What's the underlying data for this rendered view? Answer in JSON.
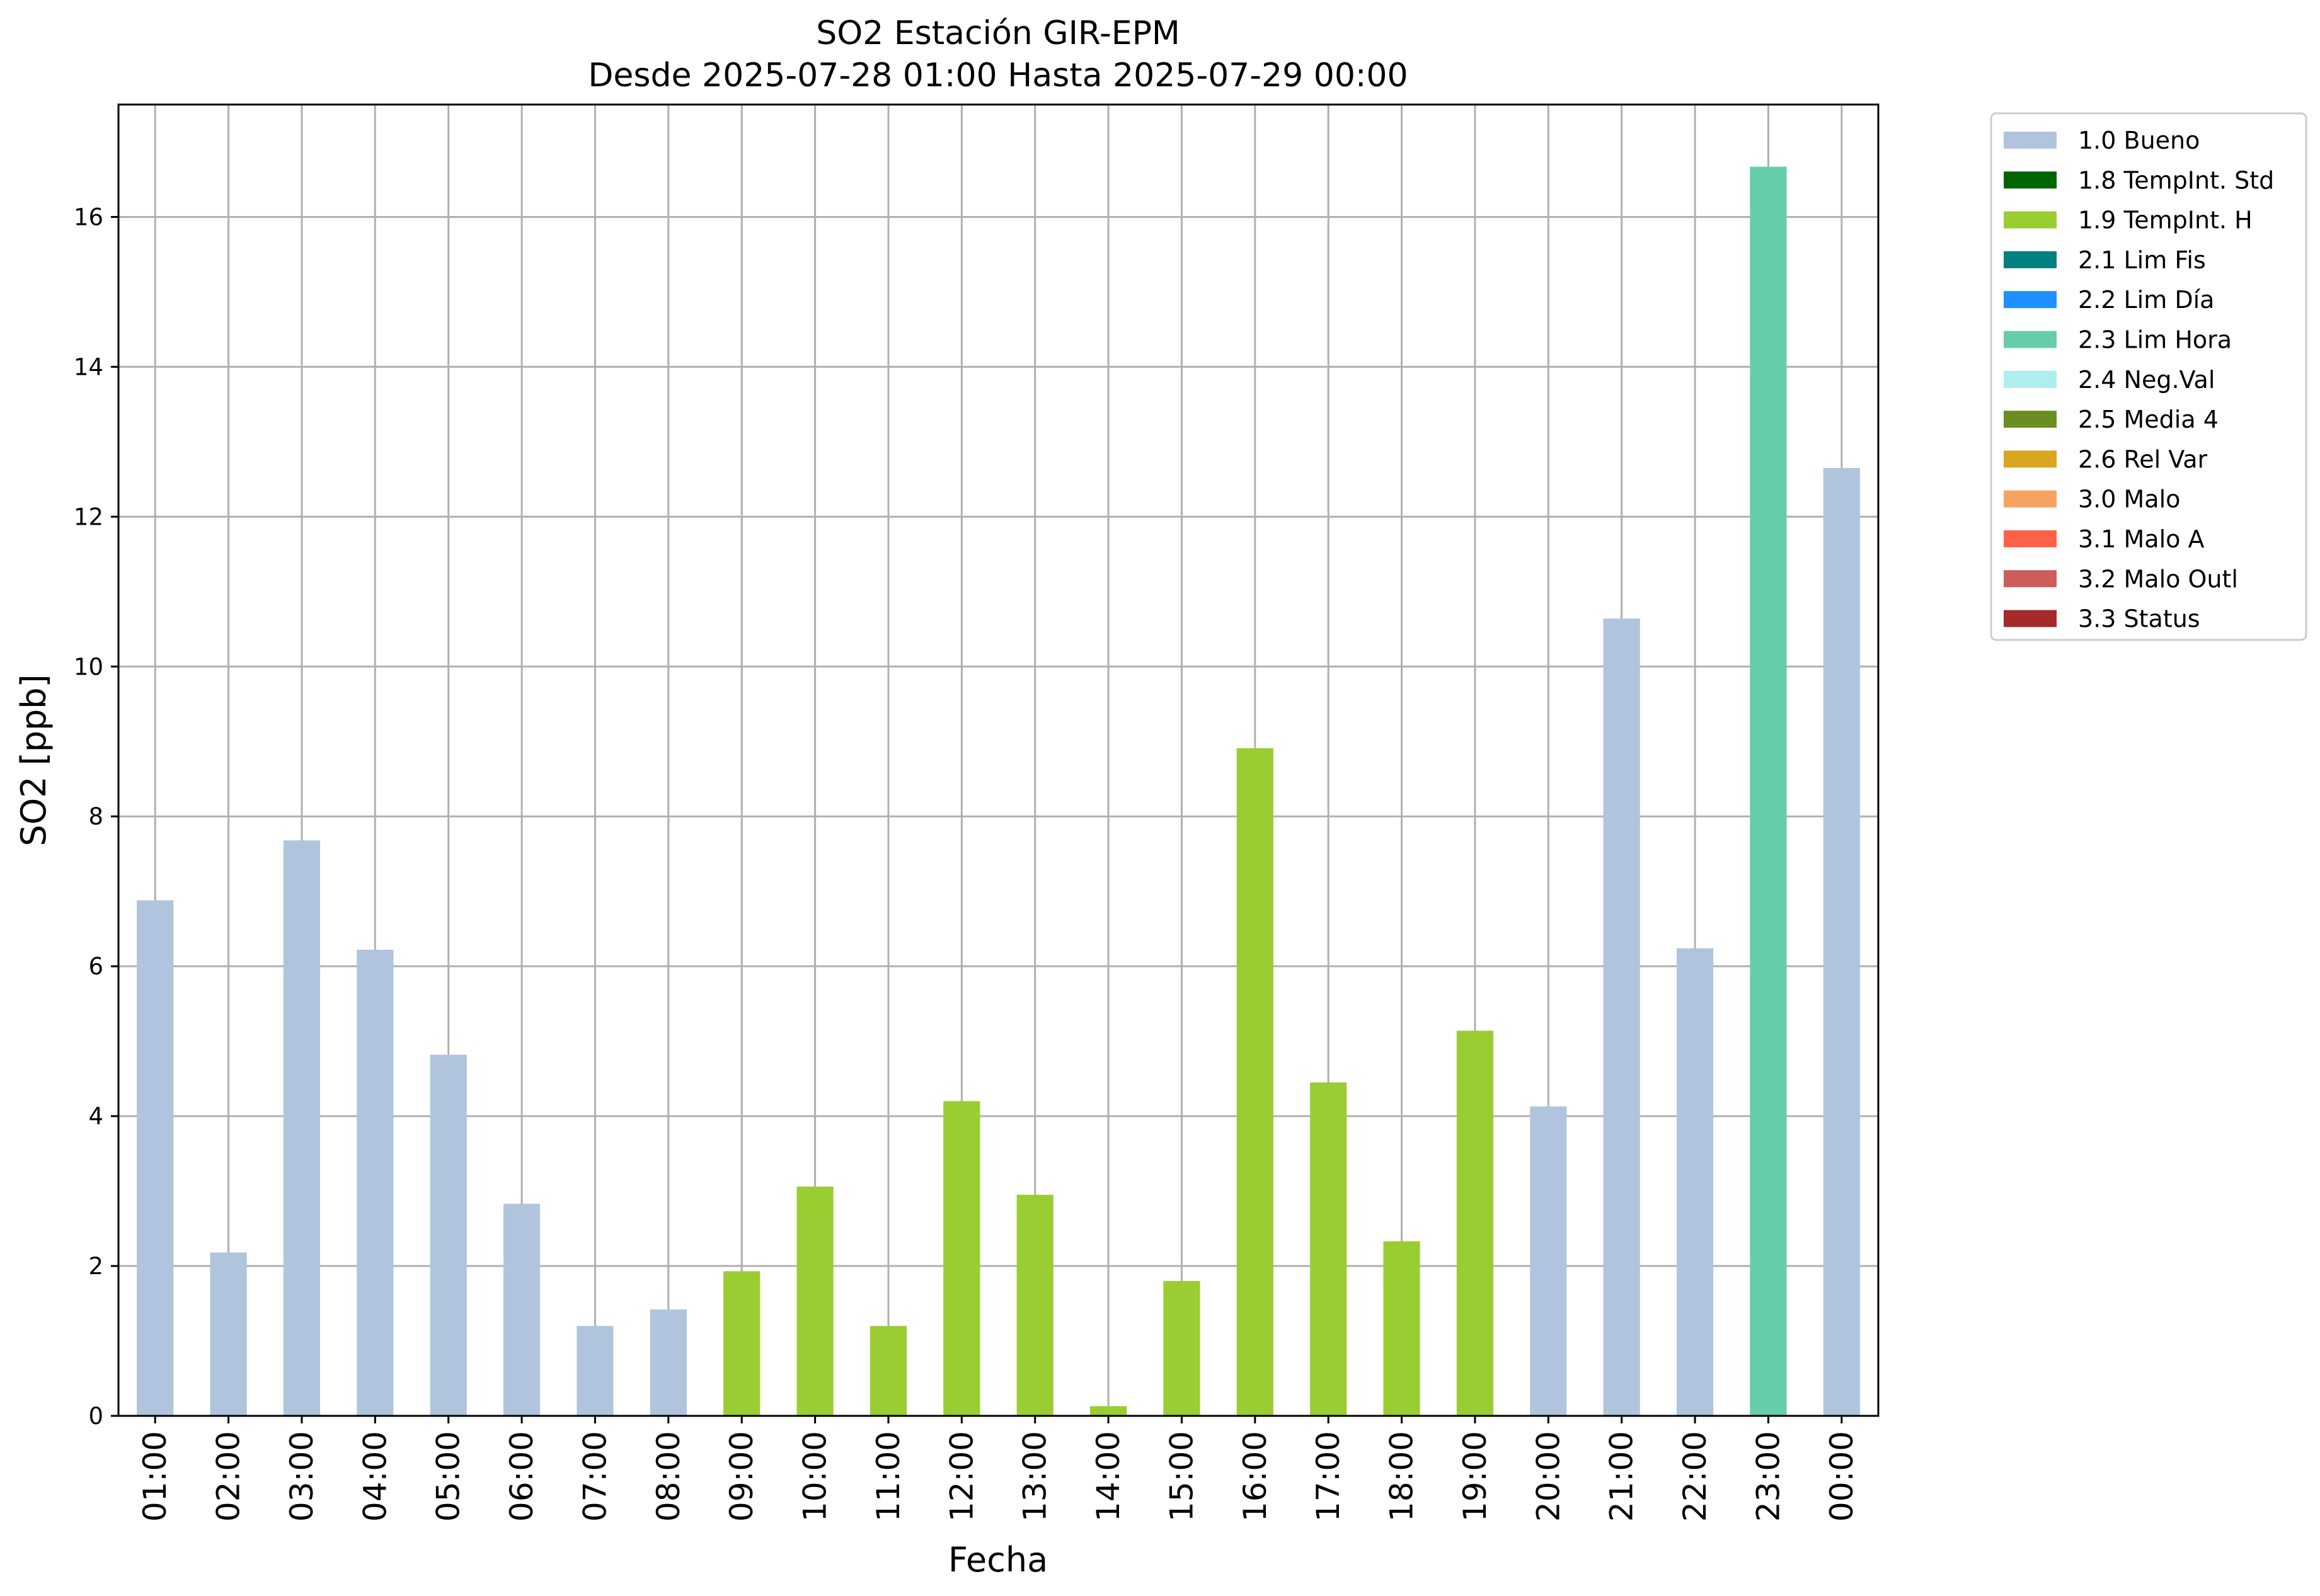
{
  "chart_data": {
    "type": "bar",
    "title": "SO2 Estación GIR-EPM",
    "subtitle": "Desde 2025-07-28 01:00 Hasta 2025-07-29 00:00",
    "xlabel": "Fecha",
    "ylabel": "SO2 [ppb]",
    "ylim": [
      0,
      17.5
    ],
    "yticks": [
      "0",
      "2",
      "4",
      "6",
      "8",
      "10",
      "12",
      "14",
      "16"
    ],
    "grid": true,
    "legend_position": "outside-top-right",
    "categories": [
      "01:00",
      "02:00",
      "03:00",
      "04:00",
      "05:00",
      "06:00",
      "07:00",
      "08:00",
      "09:00",
      "10:00",
      "11:00",
      "12:00",
      "13:00",
      "14:00",
      "15:00",
      "16:00",
      "17:00",
      "18:00",
      "19:00",
      "20:00",
      "21:00",
      "22:00",
      "23:00",
      "00:00"
    ],
    "values": [
      6.88,
      2.18,
      7.68,
      6.22,
      4.82,
      2.83,
      1.2,
      1.42,
      1.93,
      3.06,
      1.2,
      4.2,
      2.95,
      0.13,
      1.8,
      8.91,
      4.45,
      2.33,
      5.14,
      4.13,
      10.64,
      6.24,
      16.67,
      12.65
    ],
    "flags": [
      "1.0 Bueno",
      "1.0 Bueno",
      "1.0 Bueno",
      "1.0 Bueno",
      "1.0 Bueno",
      "1.0 Bueno",
      "1.0 Bueno",
      "1.0 Bueno",
      "1.9 TempInt. H",
      "1.9 TempInt. H",
      "1.9 TempInt. H",
      "1.9 TempInt. H",
      "1.9 TempInt. H",
      "1.9 TempInt. H",
      "1.9 TempInt. H",
      "1.9 TempInt. H",
      "1.9 TempInt. H",
      "1.9 TempInt. H",
      "1.9 TempInt. H",
      "1.0 Bueno",
      "1.0 Bueno",
      "1.0 Bueno",
      "2.3 Lim Hora",
      "1.0 Bueno"
    ],
    "legend": [
      {
        "label": "1.0 Bueno",
        "color": "#b0c4de"
      },
      {
        "label": "1.8 TempInt. Std",
        "color": "#006400"
      },
      {
        "label": "1.9 TempInt. H",
        "color": "#9acd32"
      },
      {
        "label": "2.1 Lim Fis",
        "color": "#008080"
      },
      {
        "label": "2.2 Lim Día",
        "color": "#1e90ff"
      },
      {
        "label": "2.3 Lim Hora",
        "color": "#66cdaa"
      },
      {
        "label": "2.4 Neg.Val",
        "color": "#afeeee"
      },
      {
        "label": "2.5 Media 4",
        "color": "#6b8e23"
      },
      {
        "label": "2.6 Rel Var",
        "color": "#daa520"
      },
      {
        "label": "3.0 Malo",
        "color": "#f4a460"
      },
      {
        "label": "3.1 Malo A",
        "color": "#ff6347"
      },
      {
        "label": "3.2 Malo Outl",
        "color": "#cd5c5c"
      },
      {
        "label": "3.3 Status",
        "color": "#a52a2a"
      }
    ]
  }
}
